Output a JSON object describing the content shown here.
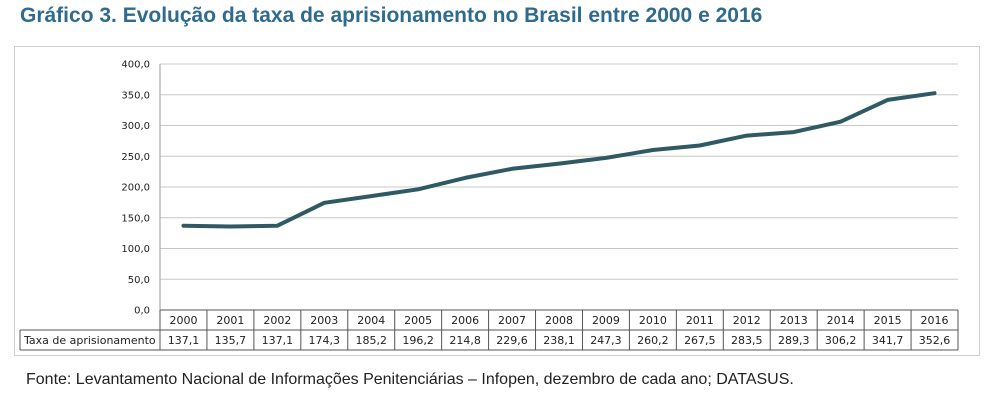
{
  "title": "Gráfico 3. Evolução da taxa de aprisionamento no Brasil entre 2000 e 2016",
  "source": "Fonte: Levantamento Nacional de Informações Penitenciárias – Infopen, dezembro de cada ano; DATASUS.",
  "colors": {
    "line": "#2f5a63",
    "title": "#2e6b8f",
    "grid": "#c8c8c8"
  },
  "chart_data": {
    "type": "line",
    "title": "",
    "xlabel": "",
    "ylabel": "",
    "categories": [
      "2000",
      "2001",
      "2002",
      "2003",
      "2004",
      "2005",
      "2006",
      "2007",
      "2008",
      "2009",
      "2010",
      "2011",
      "2012",
      "2013",
      "2014",
      "2015",
      "2016"
    ],
    "series": [
      {
        "name": "Taxa de aprisionamento",
        "values": [
          137.1,
          135.7,
          137.1,
          174.3,
          185.2,
          196.2,
          214.8,
          229.6,
          238.1,
          247.3,
          260.2,
          267.5,
          283.5,
          289.3,
          306.2,
          341.7,
          352.6
        ],
        "labels": [
          "137,1",
          "135,7",
          "137,1",
          "174,3",
          "185,2",
          "196,2",
          "214,8",
          "229,6",
          "238,1",
          "247,3",
          "260,2",
          "267,5",
          "283,5",
          "289,3",
          "306,2",
          "341,7",
          "352,6"
        ]
      }
    ],
    "ylim": [
      0,
      400
    ],
    "yticks": [
      "0,0",
      "50,0",
      "100,0",
      "150,0",
      "200,0",
      "250,0",
      "300,0",
      "350,0",
      "400,0"
    ],
    "grid": true,
    "data_table": true
  }
}
